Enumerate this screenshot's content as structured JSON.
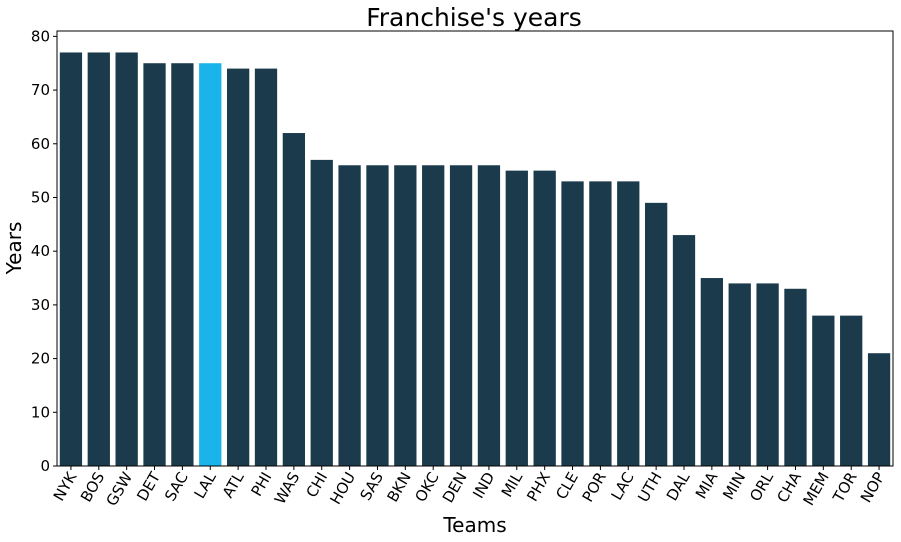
{
  "chart_data": {
    "type": "bar",
    "title": "Franchise's years",
    "xlabel": "Teams",
    "ylabel": "Years",
    "ylim": [
      0,
      81
    ],
    "yticks": [
      0,
      10,
      20,
      30,
      40,
      50,
      60,
      70,
      80
    ],
    "grid": false,
    "legend": "none",
    "categories": [
      "NYK",
      "BOS",
      "GSW",
      "DET",
      "SAC",
      "LAL",
      "ATL",
      "PHI",
      "WAS",
      "CHI",
      "HOU",
      "SAS",
      "BKN",
      "OKC",
      "DEN",
      "IND",
      "MIL",
      "PHX",
      "CLE",
      "POR",
      "LAC",
      "UTH",
      "DAL",
      "MIA",
      "MIN",
      "ORL",
      "CHA",
      "MEM",
      "TOR",
      "NOP"
    ],
    "values": [
      77,
      77,
      77,
      75,
      75,
      75,
      74,
      74,
      62,
      57,
      56,
      56,
      56,
      56,
      56,
      56,
      55,
      55,
      53,
      53,
      53,
      49,
      43,
      35,
      34,
      34,
      33,
      28,
      28,
      21
    ],
    "highlight_category": "LAL",
    "colors": {
      "bar": "#1b3a4b",
      "highlight": "#1ab4ea"
    }
  }
}
